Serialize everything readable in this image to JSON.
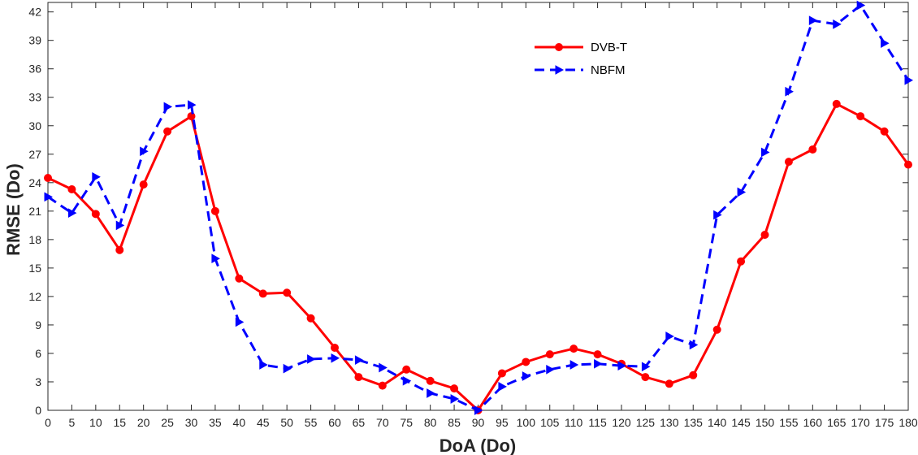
{
  "chart_data": {
    "type": "line",
    "xlabel": "DoA (Do)",
    "ylabel": "RMSE (Do)",
    "xlim": [
      0,
      180
    ],
    "ylim": [
      0,
      43
    ],
    "xticks": [
      0,
      5,
      10,
      15,
      20,
      25,
      30,
      35,
      40,
      45,
      50,
      55,
      60,
      65,
      70,
      75,
      80,
      85,
      90,
      95,
      100,
      105,
      110,
      115,
      120,
      125,
      130,
      135,
      140,
      145,
      150,
      155,
      160,
      165,
      170,
      175,
      180
    ],
    "yticks": [
      0,
      3,
      6,
      9,
      12,
      15,
      18,
      21,
      24,
      27,
      30,
      33,
      36,
      39,
      42
    ],
    "grid": false,
    "legend_position": "top-right",
    "x": [
      0,
      5,
      10,
      15,
      20,
      25,
      30,
      35,
      40,
      45,
      50,
      55,
      60,
      65,
      70,
      75,
      80,
      85,
      90,
      95,
      100,
      105,
      110,
      115,
      120,
      125,
      130,
      135,
      140,
      145,
      150,
      155,
      160,
      165,
      170,
      175,
      180
    ],
    "series": [
      {
        "name": "DVB-T",
        "color": "#ff0000",
        "line_style": "solid",
        "marker": "circle",
        "values": [
          24.5,
          23.3,
          20.7,
          16.9,
          23.8,
          29.4,
          31.0,
          21.0,
          13.9,
          12.3,
          12.4,
          9.7,
          6.6,
          3.5,
          2.6,
          4.3,
          3.1,
          2.3,
          0.0,
          3.9,
          5.1,
          5.9,
          6.5,
          5.9,
          4.9,
          3.5,
          2.8,
          3.7,
          8.5,
          15.7,
          18.5,
          26.2,
          27.5,
          32.3,
          31.0,
          29.4,
          25.9
        ]
      },
      {
        "name": "NBFM",
        "color": "#0000ff",
        "line_style": "dashed",
        "marker": "triangle-right",
        "values": [
          22.5,
          20.8,
          24.6,
          19.5,
          27.3,
          32.0,
          32.2,
          16.0,
          9.3,
          4.8,
          4.4,
          5.4,
          5.5,
          5.3,
          4.5,
          3.1,
          1.8,
          1.2,
          0.0,
          2.5,
          3.6,
          4.3,
          4.8,
          4.9,
          4.7,
          4.6,
          7.8,
          6.9,
          20.6,
          23.0,
          27.2,
          33.6,
          41.1,
          40.7,
          42.7,
          38.7,
          34.8
        ]
      }
    ]
  }
}
